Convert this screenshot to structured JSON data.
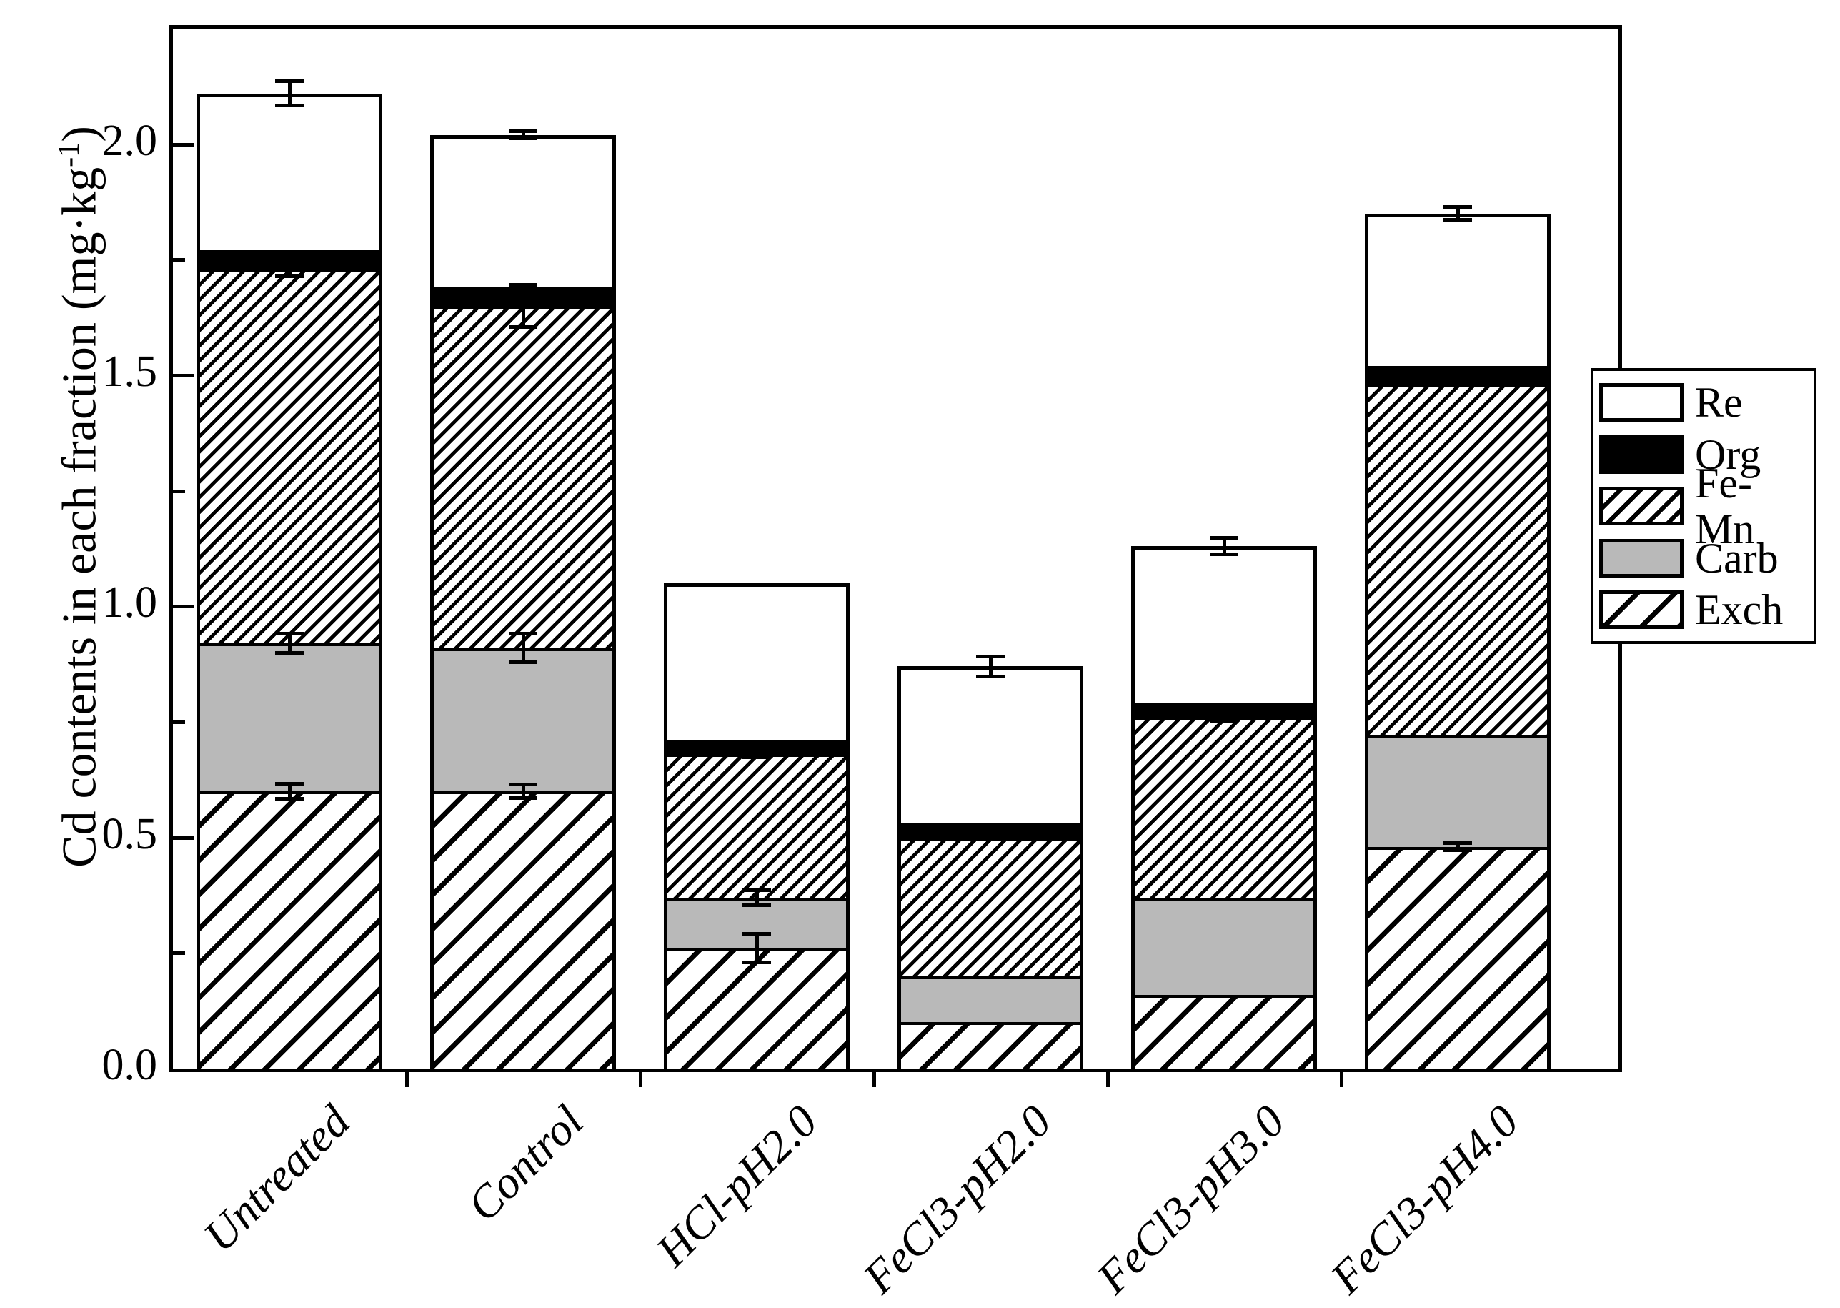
{
  "figure": {
    "ylabel": {
      "prefix": "Cd contents in each fraction (mg·kg",
      "sup": "-1",
      "suffix": ")"
    },
    "legend": [
      {
        "label": "Re",
        "swatch": "white"
      },
      {
        "label": "Org",
        "swatch": "black"
      },
      {
        "label": "Fe-Mn",
        "swatch": "hatch-dense"
      },
      {
        "label": "Carb",
        "swatch": "gray"
      },
      {
        "label": "Exch",
        "swatch": "hatch-sparse"
      }
    ],
    "colors": {
      "carb_gray": "#b9b9b9",
      "ink": "#000000",
      "background": "#ffffff"
    }
  },
  "chart_data": {
    "type": "bar",
    "stacked": true,
    "title": "",
    "xlabel": "",
    "ylabel": "Cd contents in each fraction (mg·kg⁻¹)",
    "categories": [
      "Untreated",
      "Control",
      "HCl-pH2.0",
      "FeCl3-pH2.0",
      "FeCl3-pH3.0",
      "FeCl3-pH4.0"
    ],
    "series": [
      {
        "name": "Exch",
        "pattern": "hatch-sparse",
        "values": [
          0.6,
          0.6,
          0.26,
          0.1,
          0.16,
          0.48
        ]
      },
      {
        "name": "Carb",
        "pattern": "gray",
        "values": [
          0.32,
          0.31,
          0.11,
          0.1,
          0.21,
          0.24
        ]
      },
      {
        "name": "Fe-Mn",
        "pattern": "hatch-dense",
        "values": [
          0.81,
          0.74,
          0.31,
          0.3,
          0.39,
          0.76
        ]
      },
      {
        "name": "Org",
        "pattern": "black",
        "values": [
          0.04,
          0.04,
          0.03,
          0.03,
          0.03,
          0.04
        ]
      },
      {
        "name": "Re",
        "pattern": "white",
        "values": [
          0.34,
          0.33,
          0.34,
          0.34,
          0.34,
          0.33
        ]
      }
    ],
    "totals": [
      2.11,
      2.02,
      1.05,
      0.87,
      1.13,
      1.85
    ],
    "error_bars": [
      [
        {
          "y": 2.11,
          "e": 0.03
        },
        {
          "y": 1.73,
          "e": 0.02
        },
        {
          "y": 0.92,
          "e": 0.025
        },
        {
          "y": 0.6,
          "e": 0.02
        }
      ],
      [
        {
          "y": 2.02,
          "e": 0.012
        },
        {
          "y": 1.65,
          "e": 0.05
        },
        {
          "y": 0.91,
          "e": 0.035
        },
        {
          "y": 0.6,
          "e": 0.018
        }
      ],
      [
        {
          "y": 0.68,
          "e": 0.01
        },
        {
          "y": 0.37,
          "e": 0.02
        },
        {
          "y": 0.26,
          "e": 0.035
        }
      ],
      [
        {
          "y": 0.87,
          "e": 0.025
        }
      ],
      [
        {
          "y": 1.13,
          "e": 0.022
        },
        {
          "y": 0.76,
          "e": 0.012
        }
      ],
      [
        {
          "y": 1.85,
          "e": 0.018
        },
        {
          "y": 0.48,
          "e": 0.012
        }
      ]
    ],
    "ylim": [
      0,
      2.25
    ],
    "ytick_values": [
      0.0,
      0.5,
      1.0,
      1.5,
      2.0
    ],
    "ytick_decimals": 1,
    "yminor_step": 0.25,
    "grid": false,
    "legend_position": "right",
    "legend_entries": [
      "Re",
      "Org",
      "Fe-Mn",
      "Carb",
      "Exch"
    ]
  }
}
